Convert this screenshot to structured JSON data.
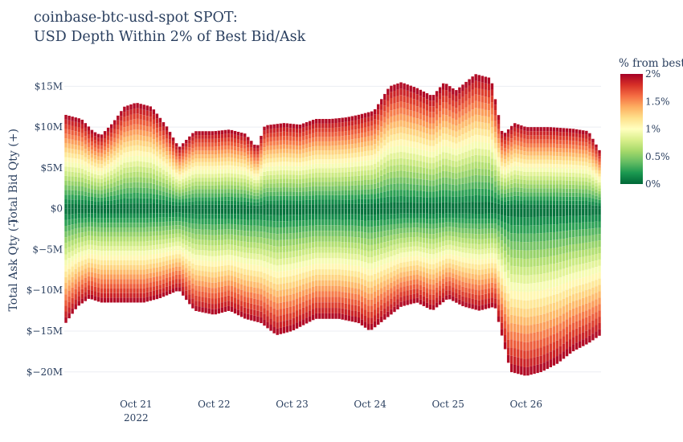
{
  "chart_data": {
    "type": "bar",
    "title_line1": "coinbase-btc-usd-spot SPOT:",
    "title_line2": "USD Depth Within 2% of Best Bid/Ask",
    "ylabel_top": "Total Bid Qty (+)",
    "ylabel_bottom": "Total Ask Qty (-)",
    "y_ticks": [
      {
        "value": 15,
        "label": "$15M"
      },
      {
        "value": 10,
        "label": "$10M"
      },
      {
        "value": 5,
        "label": "$5M"
      },
      {
        "value": 0,
        "label": "$0"
      },
      {
        "value": -5,
        "label": "$−5M"
      },
      {
        "value": -10,
        "label": "$−10M"
      },
      {
        "value": -15,
        "label": "$−15M"
      },
      {
        "value": -20,
        "label": "$−20M"
      }
    ],
    "ylim": [
      -21.5,
      17.5
    ],
    "x_ticks": [
      {
        "day": 1,
        "label": "Oct 21",
        "sublabel": "2022"
      },
      {
        "day": 2,
        "label": "Oct 22",
        "sublabel": ""
      },
      {
        "day": 3,
        "label": "Oct 23",
        "sublabel": ""
      },
      {
        "day": 4,
        "label": "Oct 24",
        "sublabel": ""
      },
      {
        "day": 5,
        "label": "Oct 25",
        "sublabel": ""
      },
      {
        "day": 6,
        "label": "Oct 26",
        "sublabel": ""
      }
    ],
    "x_range_days": [
      0.08,
      6.96
    ],
    "bar_interval_days": 0.0417,
    "colorbar": {
      "title": "% from best",
      "ticks": [
        {
          "value": 2,
          "label": "2%"
        },
        {
          "value": 1.5,
          "label": "1.5%"
        },
        {
          "value": 1,
          "label": "1%"
        },
        {
          "value": 0.5,
          "label": "0.5%"
        },
        {
          "value": 0,
          "label": "0%"
        }
      ],
      "colorscale": [
        "#006837",
        "#1a9850",
        "#66bd63",
        "#a6d96a",
        "#d9ef8b",
        "#ffffbf",
        "#fee08b",
        "#fdae61",
        "#f46d43",
        "#d73027",
        "#a50026"
      ]
    },
    "bid_depth_anchors_musd": [
      [
        0.1,
        11.5
      ],
      [
        0.3,
        11.0
      ],
      [
        0.45,
        9.5
      ],
      [
        0.55,
        9.0
      ],
      [
        0.7,
        10.5
      ],
      [
        0.85,
        12.5
      ],
      [
        1.0,
        13.0
      ],
      [
        1.2,
        12.5
      ],
      [
        1.4,
        10.0
      ],
      [
        1.55,
        7.5
      ],
      [
        1.75,
        9.5
      ],
      [
        2.0,
        9.5
      ],
      [
        2.2,
        9.7
      ],
      [
        2.4,
        9.2
      ],
      [
        2.55,
        7.5
      ],
      [
        2.65,
        10.2
      ],
      [
        2.9,
        10.5
      ],
      [
        3.1,
        10.3
      ],
      [
        3.3,
        11.0
      ],
      [
        3.5,
        11.0
      ],
      [
        3.7,
        11.2
      ],
      [
        3.85,
        11.5
      ],
      [
        4.05,
        12.0
      ],
      [
        4.25,
        15.0
      ],
      [
        4.4,
        15.5
      ],
      [
        4.6,
        14.8
      ],
      [
        4.8,
        13.8
      ],
      [
        4.95,
        15.5
      ],
      [
        5.1,
        14.5
      ],
      [
        5.35,
        16.5
      ],
      [
        5.55,
        16.0
      ],
      [
        5.7,
        9.0
      ],
      [
        5.85,
        10.5
      ],
      [
        6.0,
        10.0
      ],
      [
        6.3,
        10.0
      ],
      [
        6.6,
        9.8
      ],
      [
        6.8,
        9.5
      ],
      [
        6.95,
        7.0
      ]
    ],
    "ask_depth_anchors_musd": [
      [
        0.1,
        -14.0
      ],
      [
        0.25,
        -12.0
      ],
      [
        0.4,
        -11.0
      ],
      [
        0.55,
        -11.5
      ],
      [
        0.75,
        -11.5
      ],
      [
        0.9,
        -11.5
      ],
      [
        1.1,
        -11.5
      ],
      [
        1.3,
        -11.0
      ],
      [
        1.55,
        -10.0
      ],
      [
        1.75,
        -12.5
      ],
      [
        2.0,
        -13.0
      ],
      [
        2.2,
        -12.5
      ],
      [
        2.4,
        -13.5
      ],
      [
        2.6,
        -14.0
      ],
      [
        2.8,
        -15.5
      ],
      [
        3.0,
        -15.0
      ],
      [
        3.3,
        -13.5
      ],
      [
        3.6,
        -13.5
      ],
      [
        3.85,
        -14.0
      ],
      [
        4.0,
        -15.0
      ],
      [
        4.2,
        -13.5
      ],
      [
        4.4,
        -12.0
      ],
      [
        4.6,
        -11.5
      ],
      [
        4.8,
        -12.5
      ],
      [
        5.0,
        -11.0
      ],
      [
        5.2,
        -12.0
      ],
      [
        5.4,
        -12.5
      ],
      [
        5.6,
        -12.0
      ],
      [
        5.7,
        -16.0
      ],
      [
        5.8,
        -20.0
      ],
      [
        6.0,
        -20.5
      ],
      [
        6.2,
        -20.0
      ],
      [
        6.4,
        -19.0
      ],
      [
        6.6,
        -17.5
      ],
      [
        6.8,
        -16.5
      ],
      [
        6.95,
        -15.5
      ]
    ]
  }
}
